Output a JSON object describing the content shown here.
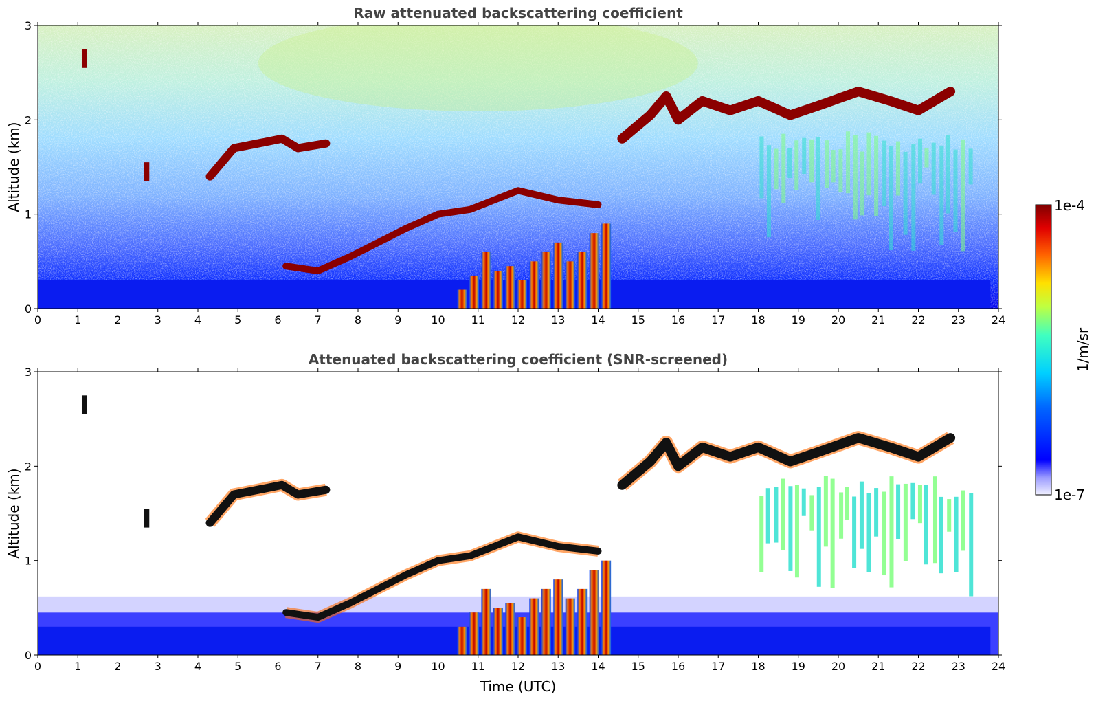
{
  "chart_data": [
    {
      "type": "heatmap",
      "title": "Raw attenuated backscattering coefficient",
      "xlabel": "",
      "ylabel": "Altitude (km)",
      "xlim": [
        0,
        24
      ],
      "ylim": [
        0,
        3
      ],
      "x_ticks": [
        "0",
        "1",
        "2",
        "3",
        "4",
        "5",
        "6",
        "7",
        "8",
        "9",
        "10",
        "11",
        "12",
        "13",
        "14",
        "15",
        "16",
        "17",
        "18",
        "19",
        "20",
        "21",
        "22",
        "23",
        "24"
      ],
      "y_ticks": [
        "0",
        "1",
        "2",
        "3"
      ],
      "screened": false
    },
    {
      "type": "heatmap",
      "title": "Attenuated backscattering coefficient (SNR-screened)",
      "xlabel": "Time (UTC)",
      "ylabel": "Altitude (km)",
      "xlim": [
        0,
        24
      ],
      "ylim": [
        0,
        3
      ],
      "x_ticks": [
        "0",
        "1",
        "2",
        "3",
        "4",
        "5",
        "6",
        "7",
        "8",
        "9",
        "10",
        "11",
        "12",
        "13",
        "14",
        "15",
        "16",
        "17",
        "18",
        "19",
        "20",
        "21",
        "22",
        "23",
        "24"
      ],
      "y_ticks": [
        "0",
        "1",
        "2",
        "3"
      ],
      "screened": true
    }
  ],
  "colorbar": {
    "label": "1/m/sr",
    "max_label": "1e-4",
    "min_label": "1e-7",
    "scale": "log",
    "range": [
      1e-07,
      0.0001
    ],
    "colormap": "jet"
  },
  "features": {
    "cloud_layer": [
      [
        4.3,
        1.4
      ],
      [
        4.9,
        1.7
      ],
      [
        5.5,
        1.75
      ],
      [
        6.1,
        1.8
      ],
      [
        6.5,
        1.7
      ],
      [
        7.2,
        1.75
      ]
    ],
    "rising_layer": [
      [
        6.2,
        0.45
      ],
      [
        7.0,
        0.4
      ],
      [
        7.8,
        0.55
      ],
      [
        8.5,
        0.7
      ],
      [
        9.2,
        0.85
      ],
      [
        10.0,
        1.0
      ],
      [
        10.8,
        1.05
      ],
      [
        12.0,
        1.25
      ],
      [
        13.0,
        1.15
      ],
      [
        14.0,
        1.1
      ]
    ],
    "upper_layer": [
      [
        14.6,
        1.8
      ],
      [
        15.3,
        2.05
      ],
      [
        15.7,
        2.25
      ],
      [
        16.0,
        2.0
      ],
      [
        16.6,
        2.2
      ],
      [
        17.3,
        2.1
      ],
      [
        18.0,
        2.2
      ],
      [
        18.8,
        2.05
      ],
      [
        19.5,
        2.15
      ],
      [
        20.5,
        2.3
      ],
      [
        21.3,
        2.2
      ],
      [
        22.0,
        2.1
      ],
      [
        22.8,
        2.3
      ]
    ],
    "rain_shafts": [
      [
        10.6,
        0.2
      ],
      [
        10.9,
        0.35
      ],
      [
        11.2,
        0.6
      ],
      [
        11.5,
        0.4
      ],
      [
        11.8,
        0.45
      ],
      [
        12.1,
        0.3
      ],
      [
        12.4,
        0.5
      ],
      [
        12.7,
        0.6
      ],
      [
        13.0,
        0.7
      ],
      [
        13.3,
        0.5
      ],
      [
        13.6,
        0.6
      ],
      [
        13.9,
        0.8
      ],
      [
        14.2,
        0.9
      ]
    ]
  }
}
